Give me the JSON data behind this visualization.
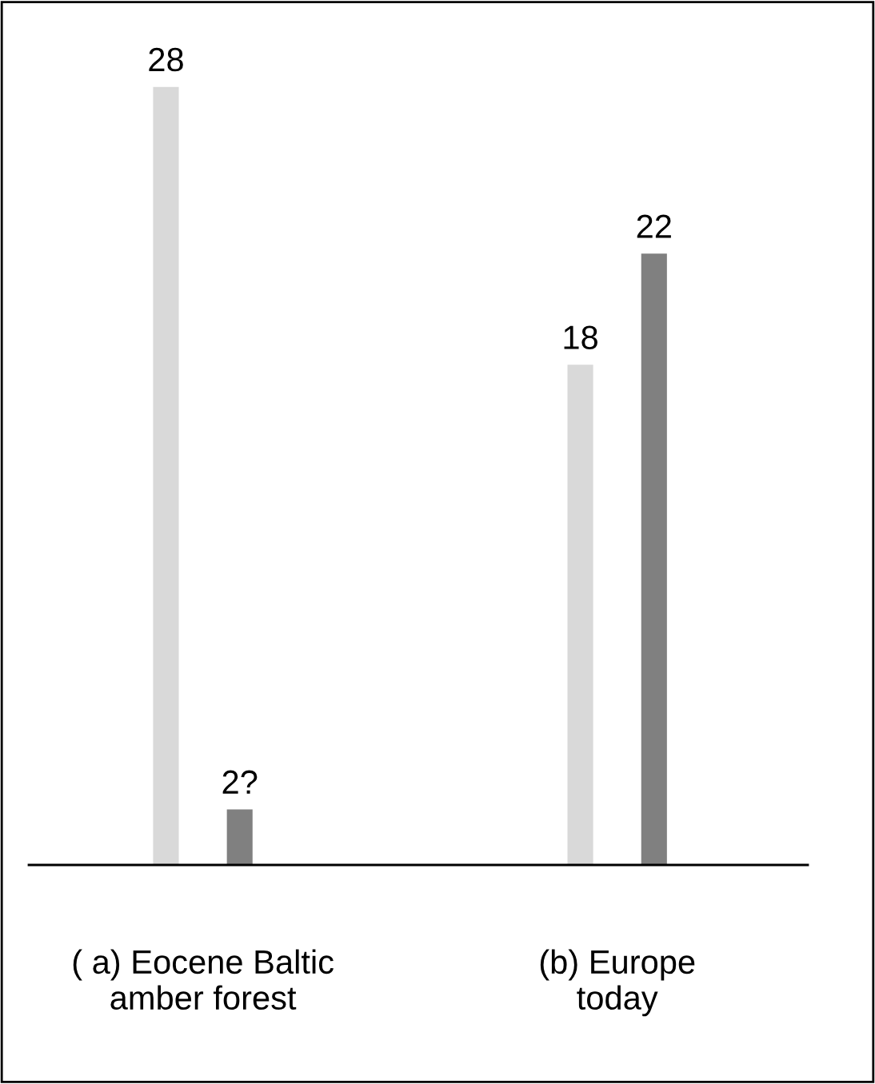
{
  "chart_data": {
    "type": "bar",
    "categories": [
      "( a) Eocene Baltic\namber forest",
      "(b) Europe\ntoday"
    ],
    "series": [
      {
        "color": "#d9d9d9",
        "values": [
          28,
          18
        ],
        "value_labels": [
          "28",
          "18"
        ]
      },
      {
        "color": "#808080",
        "values": [
          2,
          22
        ],
        "value_labels": [
          "2?",
          "22"
        ]
      }
    ],
    "grid": false,
    "legend": false
  }
}
